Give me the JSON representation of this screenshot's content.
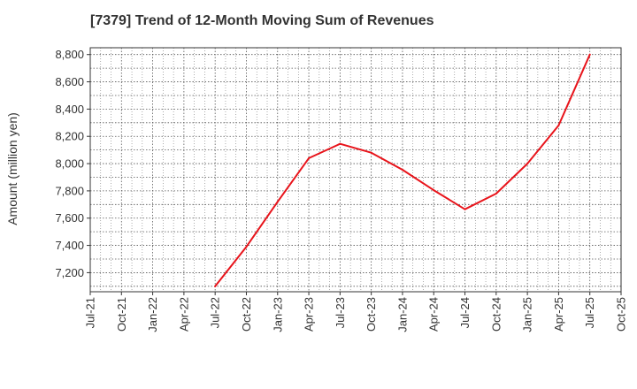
{
  "chart_data": {
    "type": "line",
    "title": "[7379]  Trend of 12-Month Moving Sum of Revenues",
    "xlabel": "",
    "ylabel": "Amount (million yen)",
    "x_ticks": [
      "Jul-21",
      "Oct-21",
      "Jan-22",
      "Apr-22",
      "Jul-22",
      "Oct-22",
      "Jan-23",
      "Apr-23",
      "Jul-23",
      "Oct-23",
      "Jan-24",
      "Apr-24",
      "Jul-24",
      "Oct-24",
      "Jan-25",
      "Apr-25",
      "Jul-25",
      "Oct-25"
    ],
    "y_ticks": [
      "7,200",
      "7,400",
      "7,600",
      "7,800",
      "8,000",
      "8,200",
      "8,400",
      "8,600",
      "8,800"
    ],
    "ylim": [
      7060,
      8850
    ],
    "grid": true,
    "series": [
      {
        "color": "#e8141b",
        "x": [
          "Jul-22",
          "Oct-22",
          "Jan-23",
          "Apr-23",
          "Jul-23",
          "Oct-23",
          "Jan-24",
          "Apr-24",
          "Jul-24",
          "Oct-24",
          "Jan-25",
          "Apr-25",
          "Jul-25"
        ],
        "values": [
          7100,
          7390,
          7720,
          8040,
          8145,
          8080,
          7955,
          7805,
          7665,
          7780,
          8000,
          8280,
          8800
        ]
      }
    ]
  }
}
